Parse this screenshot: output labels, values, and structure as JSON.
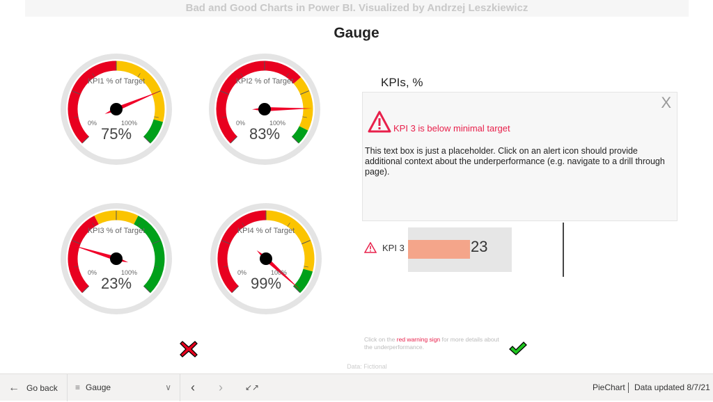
{
  "header": {
    "banner": "Bad and Good Charts in Power BI. Visualized by Andrzej Leszkiewicz",
    "title": "Gauge"
  },
  "gauges": [
    {
      "label": "KPI1 % of Target",
      "value": 75,
      "value_text": "75%",
      "min_label": "0%",
      "max_label": "100%",
      "bands": [
        {
          "to": 50,
          "color": "#e8001f"
        },
        {
          "to": 89,
          "color": "#fbc400"
        },
        {
          "to": 100,
          "color": "#00a01a"
        }
      ]
    },
    {
      "label": "KPI2 % of Target",
      "value": 83,
      "value_text": "83%",
      "min_label": "0%",
      "max_label": "100%",
      "bands": [
        {
          "to": 68,
          "color": "#e8001f"
        },
        {
          "to": 93,
          "color": "#fbc400"
        },
        {
          "to": 100,
          "color": "#00a01a"
        }
      ]
    },
    {
      "label": "KPI3 % of Target",
      "value": 23,
      "value_text": "23%",
      "min_label": "0%",
      "max_label": "100%",
      "bands": [
        {
          "to": 40,
          "color": "#e8001f"
        },
        {
          "to": 60,
          "color": "#fbc400"
        },
        {
          "to": 100,
          "color": "#00a01a"
        }
      ]
    },
    {
      "label": "KPI4 % of Target",
      "value": 99,
      "value_text": "99%",
      "min_label": "0%",
      "max_label": "100%",
      "bands": [
        {
          "to": 50,
          "color": "#e8001f"
        },
        {
          "to": 89,
          "color": "#fbc400"
        },
        {
          "to": 100,
          "color": "#00a01a"
        }
      ]
    }
  ],
  "kpis": {
    "title": "KPIs, %",
    "close_label": "X",
    "alert_title": "KPI 3 is below minimal target",
    "alert_body": "This text box is just a placeholder. Click on an alert icon should provide additional context about the underperformance (e.g. navigate to a drill through page).",
    "row_label": "KPI 3",
    "row_value": "23",
    "row_fraction": 0.6
  },
  "hint": {
    "pre": "Click on the ",
    "highlight": "red warning sign",
    "post": " for more details about the underperformance."
  },
  "data_note": "Data: Fictional",
  "footer": {
    "go_back": "Go back",
    "page": "Gauge",
    "report": "PieChart",
    "updated": "Data updated 8/7/21"
  },
  "colors": {
    "alert": "#e8204b",
    "bar": "#f4a58a"
  }
}
